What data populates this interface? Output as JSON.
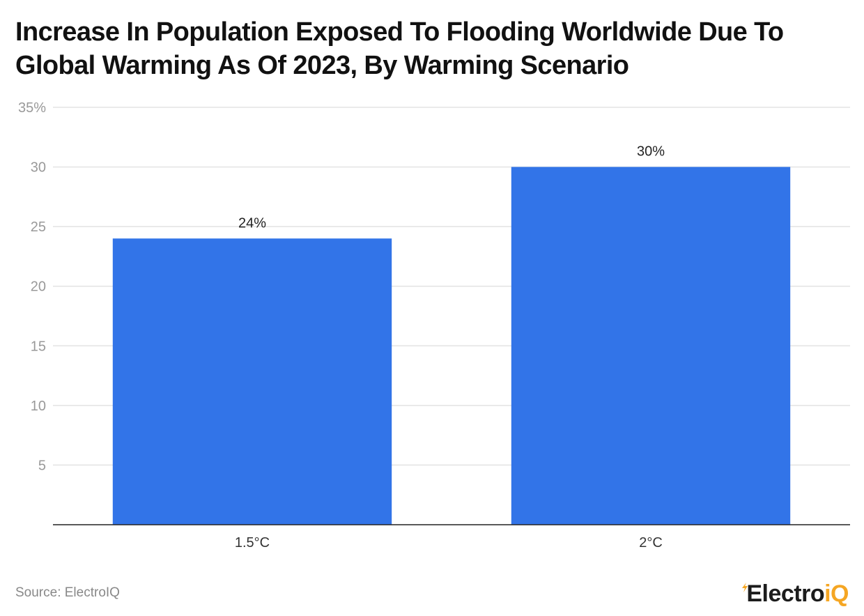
{
  "title": "Increase In Population Exposed To Flooding Worldwide Due To Global Warming As Of 2023, By Warming Scenario",
  "chart_data": {
    "type": "bar",
    "categories": [
      "1.5°C",
      "2°C"
    ],
    "values": [
      24,
      30
    ],
    "data_labels": [
      "24%",
      "30%"
    ],
    "y_ticks": [
      {
        "value": 35,
        "label": "35%"
      },
      {
        "value": 30,
        "label": "30"
      },
      {
        "value": 25,
        "label": "25"
      },
      {
        "value": 20,
        "label": "20"
      },
      {
        "value": 15,
        "label": "15"
      },
      {
        "value": 10,
        "label": "10"
      },
      {
        "value": 5,
        "label": "5"
      }
    ],
    "ylim": [
      0,
      35
    ],
    "grid": true,
    "bar_color": "#3274e8"
  },
  "footer": {
    "source": "Source: ElectroIQ",
    "logo_text_main": "Electro",
    "logo_text_accent": "iQ"
  }
}
